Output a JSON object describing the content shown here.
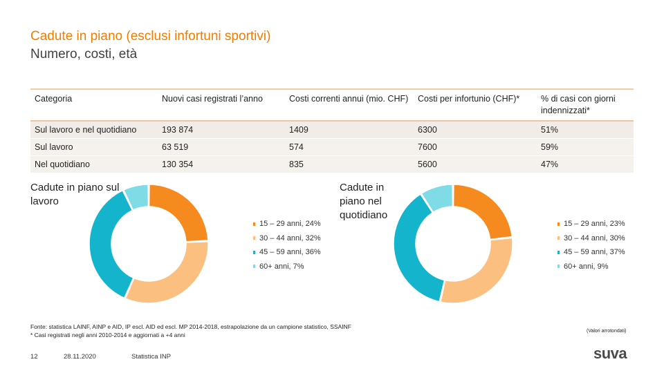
{
  "header": {
    "title": "Cadute in piano (esclusi infortuni sportivi)",
    "subtitle": "Numero, costi, età"
  },
  "table": {
    "headers": [
      "Categoria",
      "Nuovi casi registrati l’anno",
      "Costi correnti annui (mio. CHF)",
      "Costi per infortunio (CHF)*",
      "% di casi con giorni indennizzati*"
    ],
    "rows": [
      [
        "Sul lavoro e nel quotidiano",
        "193 874",
        "1409",
        "6300",
        "51%"
      ],
      [
        "Sul lavoro",
        "63 519",
        "574",
        "7600",
        "59%"
      ],
      [
        "Nel quotidiano",
        "130 354",
        "835",
        "5600",
        "47%"
      ]
    ]
  },
  "colors": {
    "accent": "#f07c00",
    "segments": [
      "#f58a1f",
      "#fbbf80",
      "#14b5cc",
      "#7fdbe6"
    ]
  },
  "chart_data": [
    {
      "type": "pie",
      "title": "Cadute in piano sul lavoro",
      "categories": [
        "15 – 29 anni",
        "30 – 44 anni",
        "45 – 59 anni",
        "60+ anni"
      ],
      "values": [
        24,
        32,
        36,
        7
      ],
      "legend": [
        "15 – 29 anni, 24%",
        "30 – 44 anni, 32%",
        "45 – 59 anni, 36%",
        "60+ anni, 7%"
      ]
    },
    {
      "type": "pie",
      "title": "Cadute in piano nel quotidiano",
      "categories": [
        "15 – 29 anni",
        "30 – 44 anni",
        "45 – 59 anni",
        "60+ anni"
      ],
      "values": [
        23,
        30,
        37,
        9
      ],
      "legend": [
        "15 – 29 anni, 23%",
        "30 – 44 anni, 30%",
        "45 – 59 anni, 37%",
        "60+ anni, 9%"
      ]
    }
  ],
  "footer": {
    "source": "Fonte: statistica LAINF, AINP e AID, IP escl. AID ed escl. MP 2014-2018, estrapolazione da un campione statistico, SSAINF",
    "note_cases": "* Casi registrati negli anni 2010-2014 e aggiornati a +4 anni",
    "rounded_note": "(Valori arrotondati)",
    "page_number": "12",
    "date": "28.11.2020",
    "section": "Statistica INP",
    "logo": "suva"
  }
}
